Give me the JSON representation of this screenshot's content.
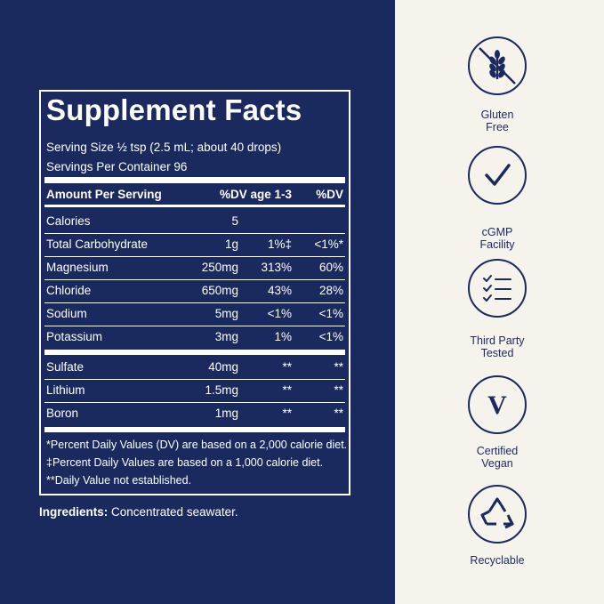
{
  "panel": {
    "title": "Supplement Facts",
    "serving_size": "Serving Size ½ tsp (2.5 mL; about 40 drops)",
    "servings_per_container": "Servings Per Container 96",
    "headers": {
      "amount": "Amount Per Serving",
      "dv_child": "%DV age 1-3",
      "dv": "%DV"
    },
    "rows": [
      {
        "name": "Calories",
        "amount": "5",
        "dv_child": "",
        "dv": ""
      },
      {
        "name": "Total Carbohydrate",
        "amount": "1g",
        "dv_child": "1%‡",
        "dv": "<1%*"
      },
      {
        "name": "Magnesium",
        "amount": "250mg",
        "dv_child": "313%",
        "dv": "60%"
      },
      {
        "name": "Chloride",
        "amount": "650mg",
        "dv_child": "43%",
        "dv": "28%"
      },
      {
        "name": "Sodium",
        "amount": "5mg",
        "dv_child": "<1%",
        "dv": "<1%"
      },
      {
        "name": "Potassium",
        "amount": "3mg",
        "dv_child": "1%",
        "dv": "<1%"
      },
      {
        "name": "Sulfate",
        "amount": "40mg",
        "dv_child": "**",
        "dv": "**"
      },
      {
        "name": "Lithium",
        "amount": "1.5mg",
        "dv_child": "**",
        "dv": "**"
      },
      {
        "name": "Boron",
        "amount": "1mg",
        "dv_child": "**",
        "dv": "**"
      }
    ],
    "footnotes": [
      "*Percent Daily Values (DV) are based on a 2,000 calorie diet.",
      "‡Percent Daily Values are based on a 1,000 calorie diet.",
      "**Daily Value not established."
    ],
    "ingredients_label": "Ingredients:",
    "ingredients_text": " Concentrated seawater."
  },
  "badges": [
    {
      "icon": "gluten-free-wheat-icon",
      "line1": "Gluten",
      "line2": "Free"
    },
    {
      "icon": "checkmark-icon",
      "line1": "cGMP",
      "line2": "Facility"
    },
    {
      "icon": "checklist-icon",
      "line1": "Third Party",
      "line2": "Tested"
    },
    {
      "icon": "vegan-v-icon",
      "line1": "Certified",
      "line2": "Vegan"
    },
    {
      "icon": "recycle-icon",
      "line1": "Recyclable",
      "line2": ""
    }
  ],
  "colors": {
    "navy": "#1a2a5e",
    "cream": "#f6f2ec",
    "white": "#ffffff"
  }
}
